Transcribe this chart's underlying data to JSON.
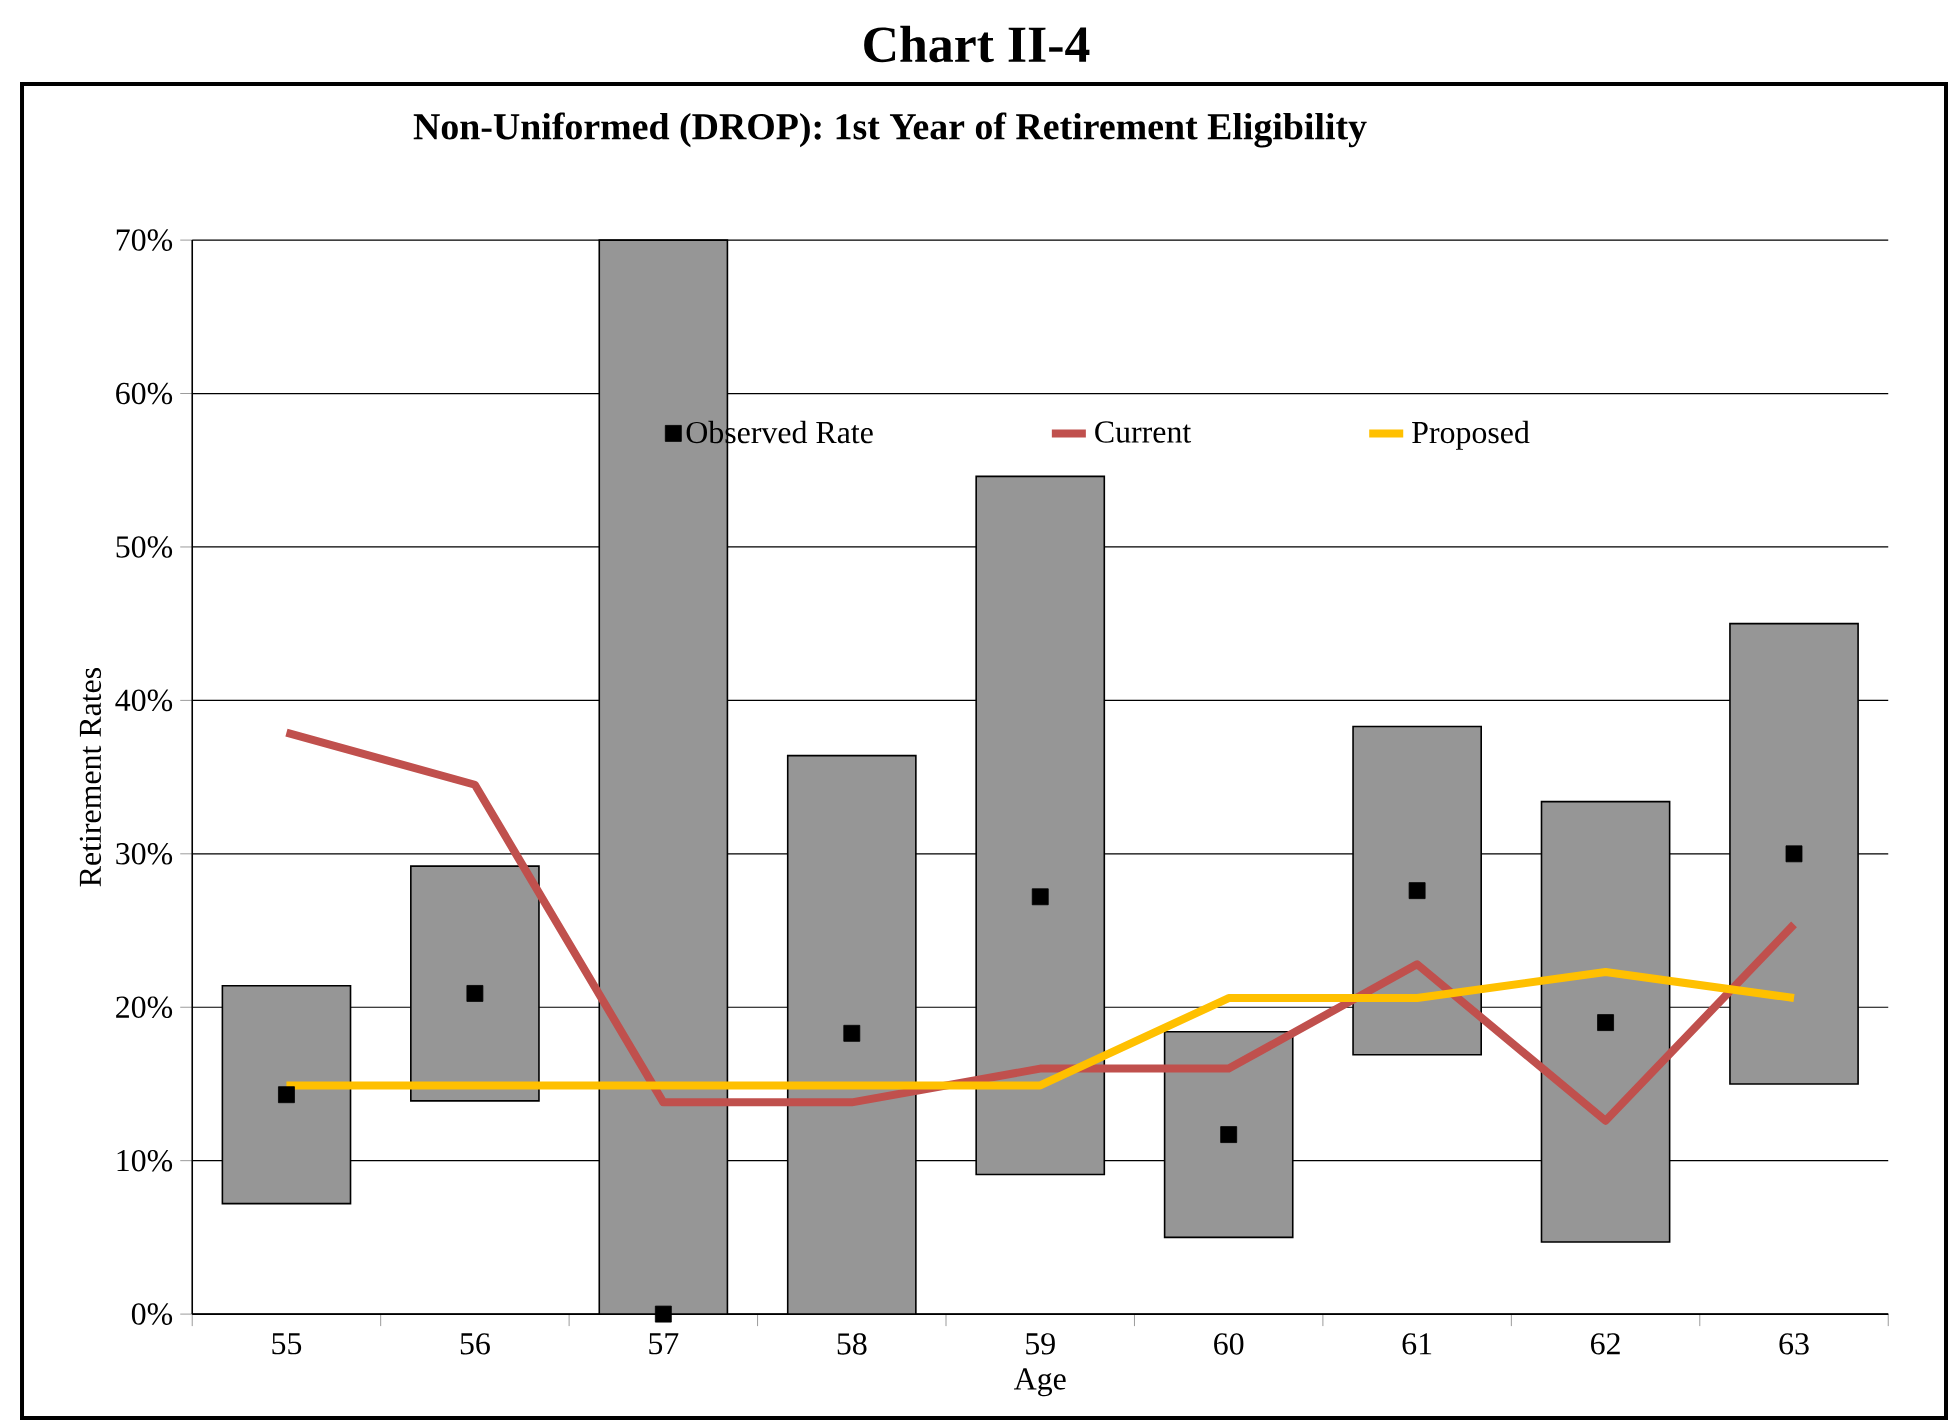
{
  "chart_data": {
    "type": "bar",
    "title": "Chart II-4",
    "subtitle": "Non-Uniformed (DROP): 1st Year of Retirement Eligibility",
    "xlabel": "Age",
    "ylabel": "Retirement Rates",
    "categories": [
      "55",
      "56",
      "57",
      "58",
      "59",
      "60",
      "61",
      "62",
      "63"
    ],
    "ylim": [
      0,
      70
    ],
    "yticks": [
      {
        "value": 0,
        "label": "0%"
      },
      {
        "value": 10,
        "label": "10%"
      },
      {
        "value": 20,
        "label": "20%"
      },
      {
        "value": 30,
        "label": "30%"
      },
      {
        "value": 40,
        "label": "40%"
      },
      {
        "value": 50,
        "label": "50%"
      },
      {
        "value": 60,
        "label": "60%"
      },
      {
        "value": 70,
        "label": "70%"
      }
    ],
    "grid": "y",
    "legend": "top",
    "series": [
      {
        "type": "bar",
        "color": "#969696",
        "base": [
          7.2,
          13.9,
          0,
          0,
          9.1,
          5.0,
          16.9,
          4.7,
          15.0
        ],
        "values": [
          14.2,
          15.3,
          70,
          36.4,
          45.5,
          13.4,
          21.4,
          28.7,
          30.0
        ]
      },
      {
        "type": "scatter",
        "name": "Observed Rate",
        "color": "#000000",
        "marker": "square",
        "values": [
          14.3,
          20.9,
          0,
          18.3,
          27.2,
          11.7,
          27.6,
          19.0,
          30.0
        ]
      },
      {
        "type": "line",
        "name": "Current",
        "color": "#c0504d",
        "values": [
          37.9,
          34.5,
          13.8,
          13.8,
          16.0,
          16.0,
          22.8,
          12.6,
          25.4
        ]
      },
      {
        "type": "line",
        "name": "Proposed",
        "color": "#ffc000",
        "values": [
          14.9,
          14.9,
          14.9,
          14.9,
          14.9,
          20.6,
          20.6,
          22.3,
          20.6
        ]
      }
    ]
  }
}
